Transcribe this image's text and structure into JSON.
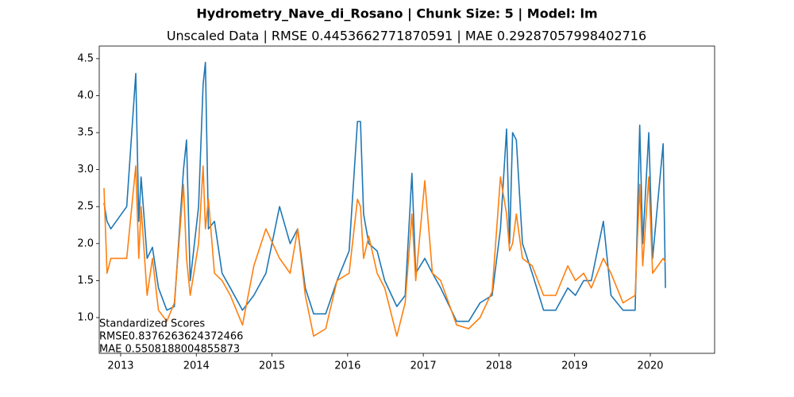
{
  "chart_data": {
    "type": "line",
    "title": "Hydrometry_Nave_di_Rosano | Chunk Size: 5 | Model: lm",
    "subtitle": "Unscaled Data | RMSE 0.4453662771870591 | MAE 0.29287057998402716",
    "annotations": [
      "Standardized Scores",
      "RMSE0.8376263624372466",
      "MAE 0.5508188004855873"
    ],
    "x": [
      2012.78,
      2012.82,
      2012.87,
      2013.08,
      2013.2,
      2013.24,
      2013.27,
      2013.35,
      2013.42,
      2013.5,
      2013.61,
      2013.71,
      2013.83,
      2013.87,
      2013.92,
      2014.03,
      2014.09,
      2014.12,
      2014.16,
      2014.24,
      2014.34,
      2014.45,
      2014.61,
      2014.76,
      2014.92,
      2015.1,
      2015.24,
      2015.34,
      2015.44,
      2015.55,
      2015.71,
      2015.86,
      2016.02,
      2016.13,
      2016.17,
      2016.21,
      2016.28,
      2016.39,
      2016.49,
      2016.65,
      2016.76,
      2016.85,
      2016.9,
      2017.02,
      2017.12,
      2017.23,
      2017.44,
      2017.6,
      2017.75,
      2017.91,
      2018.02,
      2018.1,
      2018.14,
      2018.18,
      2018.23,
      2018.31,
      2018.44,
      2018.59,
      2018.75,
      2018.91,
      2019.01,
      2019.12,
      2019.22,
      2019.38,
      2019.48,
      2019.64,
      2019.8,
      2019.86,
      2019.9,
      2019.98,
      2020.03,
      2020.17,
      2020.2
    ],
    "series": [
      {
        "color": "#1f77b4",
        "values": [
          2.55,
          2.3,
          2.2,
          2.5,
          4.3,
          2.3,
          2.9,
          1.8,
          1.95,
          1.4,
          1.1,
          1.15,
          3.0,
          3.4,
          1.5,
          2.5,
          4.15,
          4.45,
          2.2,
          2.3,
          1.6,
          1.4,
          1.1,
          1.3,
          1.6,
          2.5,
          2.0,
          2.2,
          1.4,
          1.05,
          1.05,
          1.5,
          1.9,
          3.65,
          3.65,
          2.4,
          2.0,
          1.9,
          1.5,
          1.15,
          1.3,
          2.95,
          1.6,
          1.8,
          1.6,
          1.4,
          0.95,
          0.95,
          1.2,
          1.3,
          2.2,
          3.55,
          2.0,
          3.5,
          3.4,
          2.0,
          1.6,
          1.1,
          1.1,
          1.4,
          1.3,
          1.5,
          1.5,
          2.3,
          1.3,
          1.1,
          1.1,
          3.6,
          2.0,
          3.5,
          1.8,
          3.35,
          1.4
        ]
      },
      {
        "color": "#ff7f0e",
        "values": [
          2.75,
          1.6,
          1.8,
          1.8,
          3.05,
          1.8,
          2.5,
          1.3,
          1.8,
          1.1,
          0.95,
          1.2,
          2.8,
          1.8,
          1.3,
          2.0,
          3.05,
          2.2,
          2.6,
          1.6,
          1.5,
          1.3,
          0.9,
          1.7,
          2.2,
          1.8,
          1.6,
          2.2,
          1.3,
          0.75,
          0.85,
          1.5,
          1.6,
          2.6,
          2.5,
          1.8,
          2.1,
          1.6,
          1.4,
          0.75,
          1.2,
          2.4,
          1.5,
          2.85,
          1.6,
          1.5,
          0.9,
          0.85,
          1.0,
          1.35,
          2.9,
          2.4,
          1.9,
          2.0,
          2.4,
          1.8,
          1.7,
          1.3,
          1.3,
          1.7,
          1.5,
          1.6,
          1.4,
          1.8,
          1.6,
          1.2,
          1.3,
          2.8,
          1.7,
          2.9,
          1.6,
          1.8,
          1.75
        ]
      }
    ],
    "xlim": [
      2012.717,
      2020.85
    ],
    "xticks": [
      2013,
      2014,
      2015,
      2016,
      2017,
      2018,
      2019,
      2020
    ],
    "ylim": [
      0.517,
      4.67
    ],
    "yticks": [
      {
        "value": 1,
        "label": "1.0"
      },
      1.5,
      {
        "value": 2,
        "label": "2.0"
      },
      2.5,
      {
        "value": 3,
        "label": "3.0"
      },
      3.5,
      {
        "value": 4,
        "label": "4.0"
      },
      4.5
    ]
  }
}
